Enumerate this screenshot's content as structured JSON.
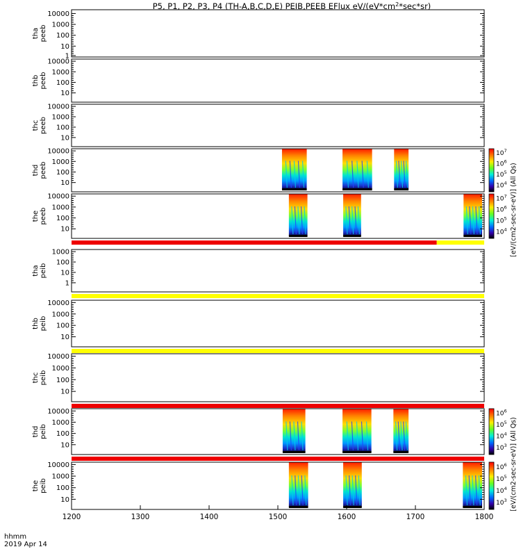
{
  "title": {
    "prefix": "P5, P1, P2, P3, P4 (TH-A,B,C,D,E) PEIB,PEEB EFlux eV/(eV*cm",
    "sup": "2",
    "suffix": "*sec*sr)"
  },
  "footer": {
    "time_label": "hhmm",
    "date_label": "2019 Apr 14"
  },
  "colorbar_labels": {
    "electron": "[eV/(cm2-sec-sr-eV)] (All Qs)",
    "ion": "[eV/(cm2-sec-sr-eV)] (All Qs)"
  },
  "chart_data": {
    "type": "heatmap",
    "xlim": [
      1200,
      1800
    ],
    "x_ticks": [
      "1200",
      "1300",
      "1400",
      "1500",
      "1600",
      "1700",
      "1800"
    ],
    "panels": [
      {
        "id": "tha-peeb",
        "probe": "tha",
        "product": "peeb",
        "yscale": "log",
        "yticks": [
          "10000",
          "1000",
          "100",
          "10",
          "1"
        ],
        "blocks": [],
        "bars": []
      },
      {
        "id": "thb-peeb",
        "probe": "thb",
        "product": "peeb",
        "yscale": "log",
        "yticks": [
          "10000",
          "1000",
          "100",
          "10"
        ],
        "blocks": [],
        "bars": []
      },
      {
        "id": "thc-peeb",
        "probe": "thc",
        "product": "peeb",
        "yscale": "log",
        "yticks": [
          "10000",
          "1000",
          "100",
          "10"
        ],
        "blocks": [],
        "bars": []
      },
      {
        "id": "thd-peeb",
        "probe": "thd",
        "product": "peeb",
        "yscale": "log",
        "yticks": [
          "10000",
          "1000",
          "100",
          "10"
        ],
        "blocks": [
          [
            1506,
            1542
          ],
          [
            1594,
            1637
          ],
          [
            1669,
            1690
          ]
        ],
        "bars": []
      },
      {
        "id": "the-peeb",
        "probe": "the",
        "product": "peeb",
        "yscale": "log",
        "yticks": [
          "10000",
          "1000",
          "100",
          "10"
        ],
        "blocks": [
          [
            1516,
            1543
          ],
          [
            1595,
            1621
          ],
          [
            1770,
            1797
          ]
        ],
        "bars": [
          {
            "x0": 1200,
            "x1": 1731,
            "level": "high"
          },
          {
            "x0": 1731,
            "x1": 1800,
            "level": "mid"
          }
        ]
      },
      {
        "id": "tha-peib",
        "probe": "tha",
        "product": "peib",
        "yscale": "log",
        "yticks": [
          "1000",
          "100",
          "10",
          "1"
        ],
        "blocks": [],
        "bars": [
          {
            "x0": 1200,
            "x1": 1800,
            "level": "mid"
          }
        ]
      },
      {
        "id": "thb-peib",
        "probe": "thb",
        "product": "peib",
        "yscale": "log",
        "yticks": [
          "10000",
          "1000",
          "100",
          "10"
        ],
        "blocks": [],
        "bars": [
          {
            "x0": 1200,
            "x1": 1800,
            "level": "mid"
          }
        ]
      },
      {
        "id": "thc-peib",
        "probe": "thc",
        "product": "peib",
        "yscale": "log",
        "yticks": [
          "10000",
          "1000",
          "100",
          "10"
        ],
        "blocks": [],
        "bars": [
          {
            "x0": 1200,
            "x1": 1800,
            "level": "high"
          }
        ]
      },
      {
        "id": "thd-peib",
        "probe": "thd",
        "product": "peib",
        "yscale": "log",
        "yticks": [
          "10000",
          "1000",
          "100",
          "10"
        ],
        "blocks": [
          [
            1507,
            1540
          ],
          [
            1594,
            1636
          ],
          [
            1668,
            1690
          ]
        ],
        "bars": [
          {
            "x0": 1200,
            "x1": 1800,
            "level": "high"
          }
        ]
      },
      {
        "id": "the-peib",
        "probe": "the",
        "product": "peib",
        "yscale": "log",
        "yticks": [
          "10000",
          "1000",
          "100",
          "10"
        ],
        "blocks": [
          [
            1516,
            1544
          ],
          [
            1595,
            1622
          ],
          [
            1769,
            1797
          ]
        ],
        "bars": []
      }
    ],
    "colorbars": [
      {
        "panel": "thd-peeb",
        "ticks": [
          {
            "label": "10",
            "exp": "7"
          },
          {
            "label": "10",
            "exp": "6"
          },
          {
            "label": "10",
            "exp": "5"
          },
          {
            "label": "10",
            "exp": "4"
          }
        ]
      },
      {
        "panel": "the-peeb",
        "ticks": [
          {
            "label": "10",
            "exp": "7"
          },
          {
            "label": "10",
            "exp": "6"
          },
          {
            "label": "10",
            "exp": "5"
          },
          {
            "label": "10",
            "exp": "4"
          }
        ]
      },
      {
        "panel": "thd-peib",
        "ticks": [
          {
            "label": "10",
            "exp": "6"
          },
          {
            "label": "10",
            "exp": "5"
          },
          {
            "label": "10",
            "exp": "4"
          },
          {
            "label": "10",
            "exp": "3"
          }
        ]
      },
      {
        "panel": "the-peib",
        "ticks": [
          {
            "label": "10",
            "exp": "6"
          },
          {
            "label": "10",
            "exp": "5"
          },
          {
            "label": "10",
            "exp": "4"
          },
          {
            "label": "10",
            "exp": "3"
          }
        ]
      }
    ],
    "colors": {
      "high": "#ee0000",
      "mid": "#ffff00",
      "palette": [
        "#ff0000",
        "#ff6600",
        "#ffaa00",
        "#ffee00",
        "#aaff00",
        "#33ee33",
        "#00ddaa",
        "#00bbee",
        "#0077ff",
        "#2233dd",
        "#220088",
        "#000000"
      ]
    }
  }
}
